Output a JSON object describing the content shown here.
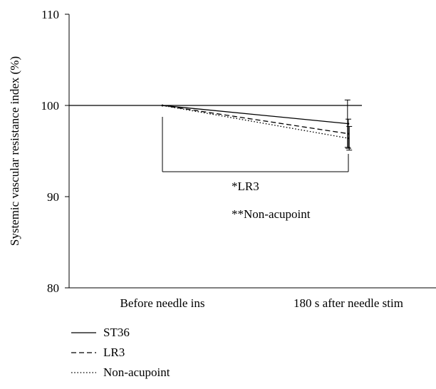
{
  "chart_data": {
    "type": "line",
    "title": "",
    "xlabel": "",
    "ylabel": "Systemic vascular resistance index (%)",
    "categories": [
      "Before needle ins",
      "180 s after needle stim"
    ],
    "ylim": [
      80,
      110
    ],
    "yticks": [
      80,
      90,
      100,
      110
    ],
    "ytick_labels": [
      "80",
      "90",
      "100",
      "110"
    ],
    "reference_line": 100,
    "grid": false,
    "legend_position": "bottom-left",
    "series": [
      {
        "name": "ST36",
        "values": [
          100,
          98.0
        ],
        "error": [
          0,
          2.6
        ],
        "dash": "solid"
      },
      {
        "name": "LR3",
        "values": [
          100,
          96.9
        ],
        "error": [
          0,
          1.6
        ],
        "dash": "dashed"
      },
      {
        "name": "Non-acupoint",
        "values": [
          100,
          96.4
        ],
        "error": [
          0,
          1.3
        ],
        "dash": "dotted"
      }
    ],
    "annotations": [
      {
        "text": "*LR3"
      },
      {
        "text": "**Non-acupoint"
      }
    ]
  }
}
